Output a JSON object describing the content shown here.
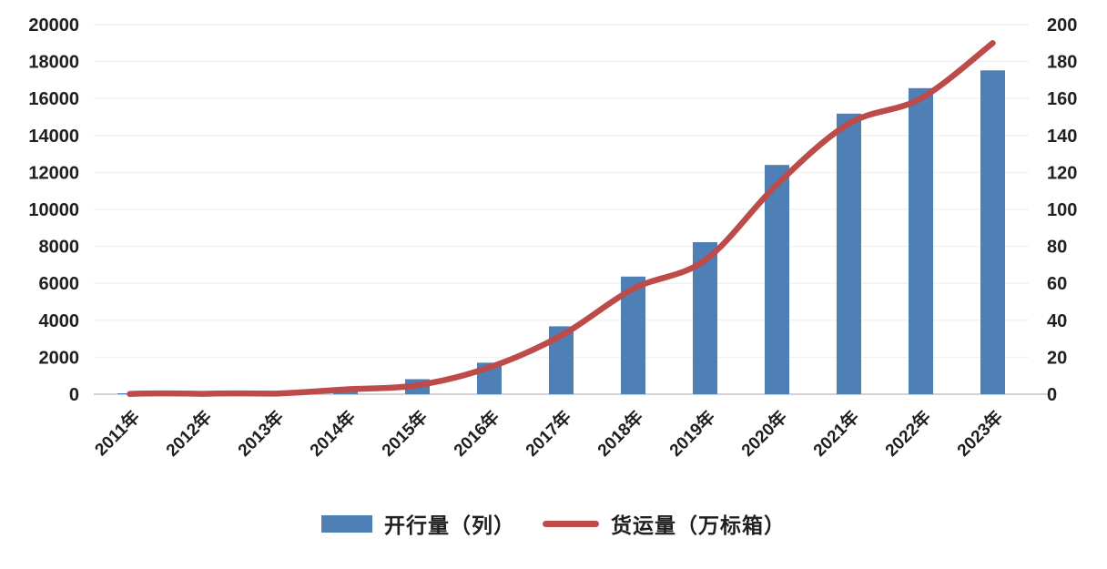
{
  "chart_data": {
    "type": "combo",
    "title": "",
    "categories": [
      "2011年",
      "2012年",
      "2013年",
      "2014年",
      "2015年",
      "2016年",
      "2017年",
      "2018年",
      "2019年",
      "2020年",
      "2021年",
      "2022年",
      "2023年"
    ],
    "series": [
      {
        "name": "开行量（列）",
        "type": "bar",
        "axis": "left",
        "color": "#4E7FB5",
        "values": [
          17,
          42,
          80,
          308,
          815,
          1702,
          3673,
          6363,
          8225,
          12406,
          15183,
          16562,
          17523
        ]
      },
      {
        "name": "货运量（万标箱）",
        "type": "line",
        "axis": "right",
        "color": "#BC4B4A",
        "values": [
          0.1,
          0.2,
          0.3,
          2.6,
          4.9,
          14.5,
          31.7,
          57,
          72.5,
          113.5,
          146.4,
          160,
          190
        ]
      }
    ],
    "left_axis": {
      "min": 0,
      "max": 20000,
      "step": 2000,
      "tick_labels": [
        "0",
        "2000",
        "4000",
        "6000",
        "8000",
        "10000",
        "12000",
        "14000",
        "16000",
        "18000",
        "20000"
      ]
    },
    "right_axis": {
      "min": 0,
      "max": 200,
      "step": 20,
      "tick_labels": [
        "0",
        "20",
        "40",
        "60",
        "80",
        "100",
        "120",
        "140",
        "160",
        "180",
        "200"
      ]
    },
    "grid": true,
    "legend_position": "bottom"
  },
  "legend": {
    "bar_label": "开行量（列）",
    "line_label": "货运量（万标箱）"
  },
  "colors": {
    "bar": "#4E7FB5",
    "line": "#BC4B4A",
    "grid": "#F1F1F1",
    "axis_line": "#C3C3C3",
    "text": "#1f1f1f",
    "background": "#FFFFFF"
  }
}
